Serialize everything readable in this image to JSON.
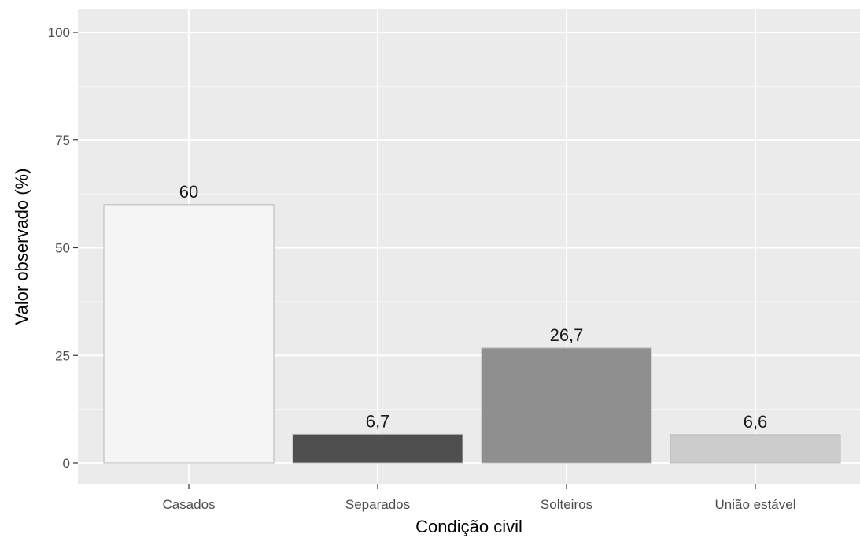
{
  "chart_data": {
    "type": "bar",
    "title": "",
    "xlabel": "Condição civil",
    "ylabel": "Valor observado (%)",
    "ylim": [
      0,
      100
    ],
    "yticks": [
      0,
      25,
      50,
      75,
      100
    ],
    "categories": [
      "Casados",
      "Separados",
      "Solteiros",
      "União estável"
    ],
    "values": [
      60,
      6.7,
      26.7,
      6.6
    ],
    "value_labels": [
      "60",
      "6,7",
      "26,7",
      "6,6"
    ],
    "bar_colors": [
      "#f5f5f5",
      "#4f4f4f",
      "#8f8f8f",
      "#cccccc"
    ],
    "panel_background": "#ebebeb",
    "grid": true,
    "legend": "none"
  }
}
